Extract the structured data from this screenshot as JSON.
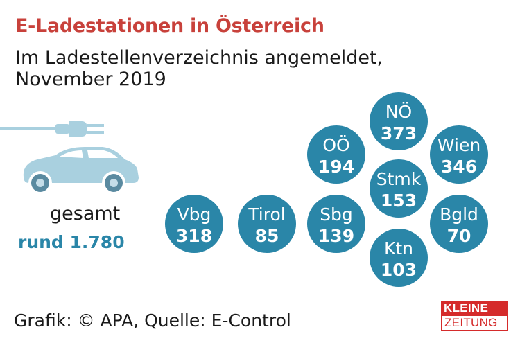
{
  "title": "E-Ladestationen in Österreich",
  "subtitle": "Im Ladestellenverzeichnis angemeldet, November 2019",
  "total": {
    "label": "gesamt",
    "value": "rund 1.780"
  },
  "source": "Grafik: © APA, Quelle: E-Control",
  "logo": {
    "line1": "KLEINE",
    "line2": "ZEITUNG"
  },
  "colors": {
    "title": "#c8413b",
    "bubble": "#2a86a8",
    "car": "#a9d0df",
    "accent": "#2a86a8",
    "logo": "#d52b2b"
  },
  "icons": [
    "car-icon",
    "charging-plug-icon"
  ],
  "chart_data": {
    "type": "bubble",
    "unit": "Ladestationen",
    "categories": [
      "NÖ",
      "OÖ",
      "Wien",
      "Stmk",
      "Vbg",
      "Tirol",
      "Sbg",
      "Bgld",
      "Ktn"
    ],
    "values": [
      373,
      194,
      346,
      153,
      318,
      85,
      139,
      70,
      103
    ]
  }
}
